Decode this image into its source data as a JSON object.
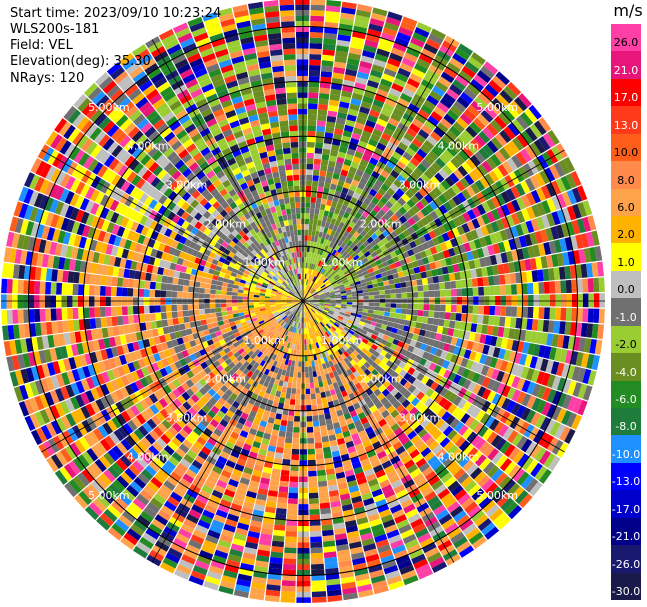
{
  "header": {
    "start_time": "Start time: 2023/09/10 10:23:24",
    "instrument": "WLS200s-181",
    "field": "Field: VEL",
    "elevation": "Elevation(deg): 35.30",
    "nrays": "NRays: 120"
  },
  "chart_data": {
    "type": "heatmap",
    "projection": "polar-ppi",
    "field": "VEL",
    "unit_label": "m/s",
    "nrays": 120,
    "range_rings_km": [
      1,
      2,
      3,
      4,
      5
    ],
    "ring_labels": [
      "1.00km",
      "2.00km",
      "3.00km",
      "4.00km",
      "5.00km"
    ],
    "max_range_km": 5.5,
    "colorbar": {
      "ticks": [
        "26.0",
        "21.0",
        "17.0",
        "13.0",
        "10.0",
        "8.0",
        "6.0",
        "2.0",
        "1.0",
        "0.0",
        "-1.0",
        "-2.0",
        "-4.0",
        "-6.0",
        "-8.0",
        "-10.0",
        "-13.0",
        "-17.0",
        "-21.0",
        "-26.0",
        "-30.0"
      ],
      "colors": [
        "#ff3ea6",
        "#e8157a",
        "#ff0000",
        "#ff3a1a",
        "#ff5e1a",
        "#ff8a4a",
        "#ffa34a",
        "#ffb300",
        "#ffff00",
        "#bfbfbf",
        "#707070",
        "#9acd32",
        "#6b8e23",
        "#228b22",
        "#1e7d3a",
        "#1e90ff",
        "#0000ff",
        "#0000cd",
        "#00008b",
        "#191970",
        "#1a1a4a"
      ]
    }
  }
}
